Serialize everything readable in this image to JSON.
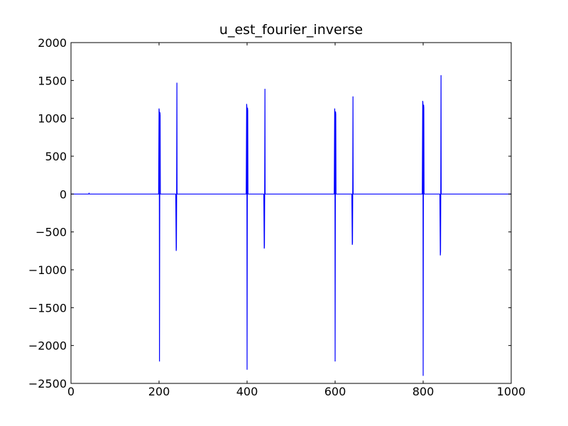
{
  "chart_data": {
    "type": "line",
    "title": "u_est_fourier_inverse",
    "xlabel": "",
    "ylabel": "",
    "xlim": [
      0,
      1000
    ],
    "ylim": [
      -2500,
      2000
    ],
    "xticks": [
      0,
      200,
      400,
      600,
      800,
      1000
    ],
    "yticks": [
      -2500,
      -2000,
      -1500,
      -1000,
      -500,
      0,
      500,
      1000,
      1500,
      2000
    ],
    "grid": false,
    "legend": "none",
    "line_color": "#0000ff",
    "series": [
      {
        "name": "u_est_fourier_inverse",
        "x": [
          0,
          40,
          41,
          42,
          199,
          200,
          200.5,
          201,
          201.6,
          202,
          202.5,
          203,
          203.5,
          204,
          238,
          239,
          239.5,
          240,
          240.6,
          241,
          241.5,
          242,
          398,
          399,
          399.5,
          400,
          400.6,
          401,
          401.5,
          402,
          402.5,
          403,
          438,
          439,
          439.5,
          440,
          440.6,
          441,
          441.5,
          442,
          598,
          599,
          599.5,
          600,
          600.6,
          601,
          601.5,
          602,
          602.5,
          603,
          638,
          639,
          639.5,
          640,
          640.6,
          641,
          641.5,
          642,
          798,
          799,
          799.5,
          800,
          800.6,
          801,
          801.5,
          802,
          802.5,
          803,
          838,
          839,
          839.5,
          840,
          840.6,
          841,
          841.5,
          842,
          1000
        ],
        "y": [
          0,
          0,
          10,
          0,
          0,
          1130,
          1090,
          -2210,
          0,
          1080,
          1040,
          0,
          0,
          0,
          0,
          -750,
          -700,
          0,
          1470,
          0,
          0,
          0,
          0,
          1190,
          1150,
          -2320,
          0,
          1140,
          1100,
          0,
          0,
          0,
          0,
          -720,
          -680,
          0,
          1390,
          0,
          0,
          0,
          0,
          1130,
          1080,
          -2210,
          0,
          1090,
          1050,
          0,
          0,
          0,
          0,
          -670,
          -640,
          0,
          1290,
          0,
          0,
          0,
          0,
          1230,
          1200,
          -2400,
          0,
          1180,
          1140,
          0,
          0,
          0,
          0,
          -810,
          -760,
          0,
          1570,
          0,
          0,
          0,
          0
        ]
      }
    ]
  }
}
